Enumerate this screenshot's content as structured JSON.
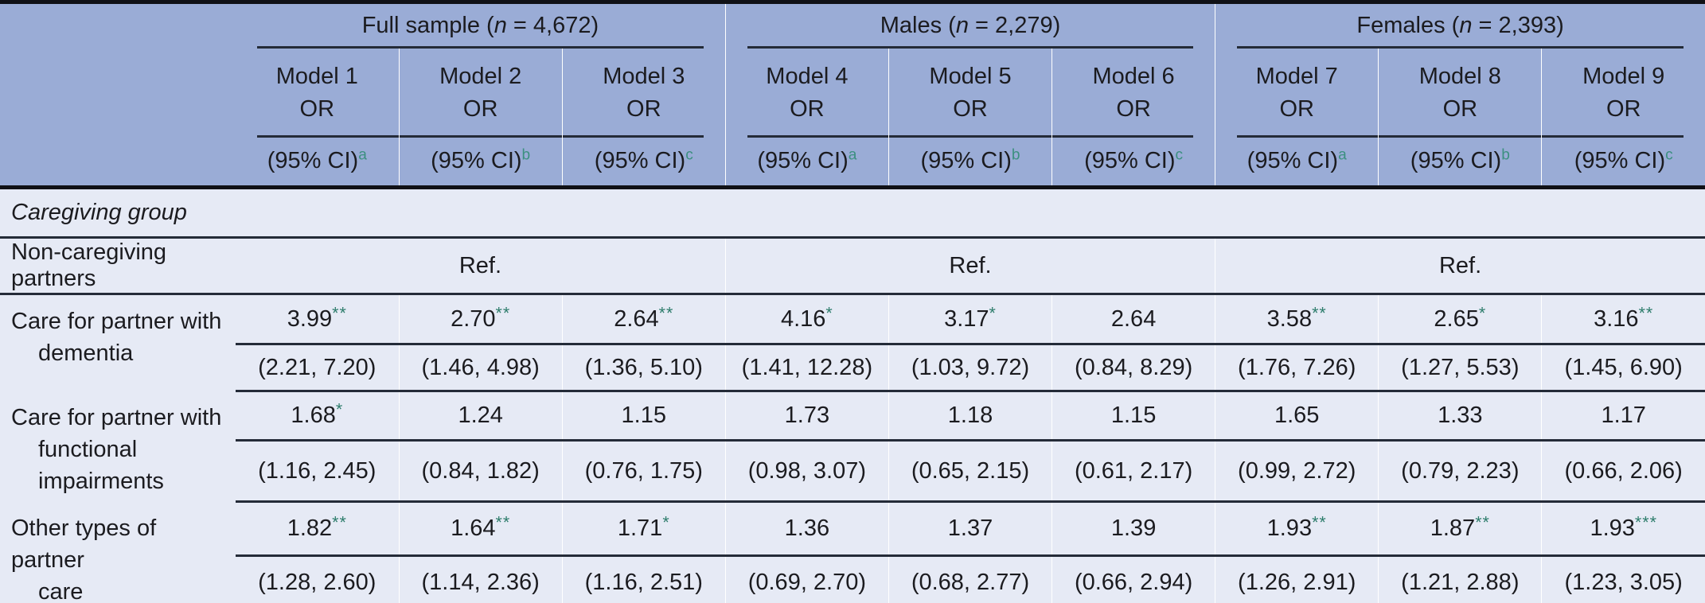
{
  "colors": {
    "header_bg": "#9AACD6",
    "body_bg": "#E6EAF5",
    "line": "#242B38",
    "border": "#101116",
    "star": "#2E7D6C",
    "sup": "#3C9080",
    "text": "#1B1B1F"
  },
  "header": {
    "groups": [
      {
        "prefix": "Full sample (",
        "nvar": "n",
        "suffix": " = 4,672)"
      },
      {
        "prefix": "Males (",
        "nvar": "n",
        "suffix": " = 2,279)"
      },
      {
        "prefix": "Females (",
        "nvar": "n",
        "suffix": " = 2,393)"
      }
    ],
    "models": [
      {
        "name": "Model 1",
        "stat": "OR"
      },
      {
        "name": "Model 2",
        "stat": "OR"
      },
      {
        "name": "Model 3",
        "stat": "OR"
      },
      {
        "name": "Model 4",
        "stat": "OR"
      },
      {
        "name": "Model 5",
        "stat": "OR"
      },
      {
        "name": "Model 6",
        "stat": "OR"
      },
      {
        "name": "Model 7",
        "stat": "OR"
      },
      {
        "name": "Model 8",
        "stat": "OR"
      },
      {
        "name": "Model 9",
        "stat": "OR"
      }
    ],
    "ci_cells": [
      {
        "label": "(95% CI)",
        "sup": "a"
      },
      {
        "label": "(95% CI)",
        "sup": "b"
      },
      {
        "label": "(95% CI)",
        "sup": "c"
      },
      {
        "label": "(95% CI)",
        "sup": "a"
      },
      {
        "label": "(95% CI)",
        "sup": "b"
      },
      {
        "label": "(95% CI)",
        "sup": "c"
      },
      {
        "label": "(95% CI)",
        "sup": "a"
      },
      {
        "label": "(95% CI)",
        "sup": "b"
      },
      {
        "label": "(95% CI)",
        "sup": "c"
      }
    ]
  },
  "body": {
    "section_label": "Caregiving group",
    "ref_row": {
      "label": "Non-caregiving partners",
      "values": [
        "Ref.",
        "Ref.",
        "Ref."
      ]
    },
    "rows": [
      {
        "label_lines": [
          "Care for partner with",
          "dementia"
        ],
        "cells": [
          {
            "or": "3.99",
            "stars": "**",
            "ci": "(2.21, 7.20)"
          },
          {
            "or": "2.70",
            "stars": "**",
            "ci": "(1.46, 4.98)"
          },
          {
            "or": "2.64",
            "stars": "**",
            "ci": "(1.36, 5.10)"
          },
          {
            "or": "4.16",
            "stars": "*",
            "ci": "(1.41, 12.28)"
          },
          {
            "or": "3.17",
            "stars": "*",
            "ci": "(1.03, 9.72)"
          },
          {
            "or": "2.64",
            "stars": "",
            "ci": "(0.84, 8.29)"
          },
          {
            "or": "3.58",
            "stars": "**",
            "ci": "(1.76, 7.26)"
          },
          {
            "or": "2.65",
            "stars": "*",
            "ci": "(1.27, 5.53)"
          },
          {
            "or": "3.16",
            "stars": "**",
            "ci": "(1.45, 6.90)"
          }
        ]
      },
      {
        "label_lines": [
          "Care for partner with",
          "functional",
          "impairments"
        ],
        "cells": [
          {
            "or": "1.68",
            "stars": "*",
            "ci": "(1.16, 2.45)"
          },
          {
            "or": "1.24",
            "stars": "",
            "ci": "(0.84, 1.82)"
          },
          {
            "or": "1.15",
            "stars": "",
            "ci": "(0.76, 1.75)"
          },
          {
            "or": "1.73",
            "stars": "",
            "ci": "(0.98, 3.07)"
          },
          {
            "or": "1.18",
            "stars": "",
            "ci": "(0.65, 2.15)"
          },
          {
            "or": "1.15",
            "stars": "",
            "ci": "(0.61, 2.17)"
          },
          {
            "or": "1.65",
            "stars": "",
            "ci": "(0.99, 2.72)"
          },
          {
            "or": "1.33",
            "stars": "",
            "ci": "(0.79, 2.23)"
          },
          {
            "or": "1.17",
            "stars": "",
            "ci": "(0.66, 2.06)"
          }
        ]
      },
      {
        "label_lines": [
          "Other types of partner",
          "care"
        ],
        "cells": [
          {
            "or": "1.82",
            "stars": "**",
            "ci": "(1.28, 2.60)"
          },
          {
            "or": "1.64",
            "stars": "**",
            "ci": "(1.14, 2.36)"
          },
          {
            "or": "1.71",
            "stars": "*",
            "ci": "(1.16, 2.51)"
          },
          {
            "or": "1.36",
            "stars": "",
            "ci": "(0.69, 2.70)"
          },
          {
            "or": "1.37",
            "stars": "",
            "ci": "(0.68, 2.77)"
          },
          {
            "or": "1.39",
            "stars": "",
            "ci": "(0.66, 2.94)"
          },
          {
            "or": "1.93",
            "stars": "**",
            "ci": "(1.26, 2.91)"
          },
          {
            "or": "1.87",
            "stars": "**",
            "ci": "(1.21, 2.88)"
          },
          {
            "or": "1.93",
            "stars": "***",
            "ci": "(1.23, 3.05)"
          }
        ]
      }
    ]
  }
}
